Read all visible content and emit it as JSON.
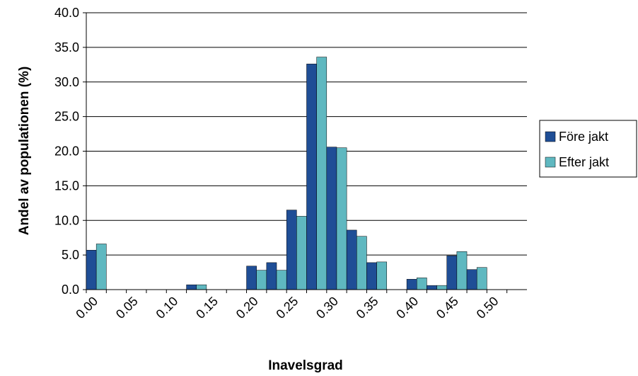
{
  "chart_data": {
    "type": "bar",
    "x_label": "Inavelsgrad",
    "y_label": "Andel av populationen (%)",
    "categories": [
      "0.00",
      null,
      "0.05",
      null,
      "0.10",
      null,
      "0.15",
      null,
      "0.20",
      null,
      "0.25",
      null,
      "0.30",
      null,
      "0.35",
      null,
      "0.40",
      null,
      "0.45",
      null,
      "0.50",
      null
    ],
    "series": [
      {
        "name": "Före jakt",
        "color": "#1f4e96",
        "values": [
          5.7,
          null,
          null,
          null,
          null,
          0.7,
          null,
          null,
          3.4,
          3.9,
          11.5,
          32.6,
          20.6,
          8.6,
          3.9,
          null,
          1.5,
          0.6,
          4.9,
          2.9,
          null,
          null
        ]
      },
      {
        "name": "Efter jakt",
        "color": "#5fb8c0",
        "values": [
          6.6,
          null,
          null,
          null,
          null,
          0.7,
          null,
          null,
          2.8,
          2.8,
          10.6,
          33.6,
          20.5,
          7.7,
          4.0,
          null,
          1.7,
          0.6,
          5.5,
          3.2,
          null,
          null
        ]
      }
    ],
    "ylim": [
      0,
      40
    ],
    "yticks": [
      {
        "value": 0,
        "label": "0.0"
      },
      {
        "value": 5,
        "label": "5.0"
      },
      {
        "value": 10,
        "label": "10.0"
      },
      {
        "value": 15,
        "label": "15.0"
      },
      {
        "value": 20,
        "label": "20.0"
      },
      {
        "value": 25,
        "label": "25.0"
      },
      {
        "value": 30,
        "label": "30.0"
      },
      {
        "value": 35,
        "label": "35.0"
      },
      {
        "value": 40,
        "label": "40.0"
      }
    ],
    "grid": true,
    "legend": "right"
  }
}
